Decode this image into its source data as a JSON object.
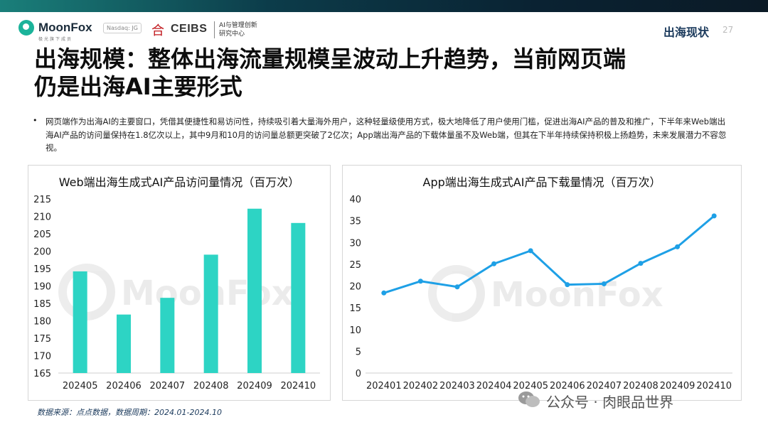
{
  "header": {
    "brand": "MoonFox",
    "brand_sub": "极光旗下成员",
    "nasdaq": "Nasdaq: JG",
    "partner": "CEIBS",
    "partner_sub_1": "AI与管理创新",
    "partner_sub_2": "研究中心",
    "section": "出海现状",
    "page_number": "27"
  },
  "title_line1": "出海规模：整体出海流量规模呈波动上升趋势，当前网页端",
  "title_line2": "仍是出海AI主要形式",
  "bullet": "网页端作为出海AI的主要窗口，凭借其便捷性和易访问性，持续吸引着大量海外用户，这种轻量级使用方式，极大地降低了用户使用门槛，促进出海AI产品的普及和推广，下半年来Web端出海AI产品的访问量保持在1.8亿次以上，其中9月和10月的访问量总额更突破了2亿次；App端出海产品的下载体量虽不及Web端，但其在下半年持续保持积极上扬趋势，未来发展潜力不容忽视。",
  "watermark_text": "MoonFox",
  "source": "数据来源：点点数据，数据周期：2024.01-2024.10",
  "wechat": "公众号 · 肉眼品世界",
  "colors": {
    "bar": "#2dd4c4",
    "line": "#1ea0e6",
    "title": "#1b3a5c"
  },
  "chart_data": [
    {
      "type": "bar",
      "title": "Web端出海生成式AI产品访问量情况（百万次）",
      "categories": [
        "202405",
        "202406",
        "202407",
        "202408",
        "202409",
        "202410"
      ],
      "values": [
        194.2,
        181.8,
        186.6,
        199.0,
        212.2,
        208.1
      ],
      "ylim": [
        165,
        215
      ],
      "yticks": [
        165,
        170,
        175,
        180,
        185,
        190,
        195,
        200,
        205,
        210,
        215
      ],
      "grid": false,
      "xlabel": "",
      "ylabel": ""
    },
    {
      "type": "line",
      "title": "App端出海生成式AI产品下载量情况（百万次）",
      "categories": [
        "202401",
        "202402",
        "202403",
        "202404",
        "202405",
        "202406",
        "202407",
        "202408",
        "202409",
        "202410"
      ],
      "values": [
        18.4,
        21.1,
        19.8,
        25.1,
        28.1,
        20.3,
        20.5,
        25.2,
        29.0,
        36.1
      ],
      "ylim": [
        0,
        40
      ],
      "yticks": [
        0,
        5,
        10,
        15,
        20,
        25,
        30,
        35,
        40
      ],
      "grid": false,
      "xlabel": "",
      "ylabel": ""
    }
  ]
}
